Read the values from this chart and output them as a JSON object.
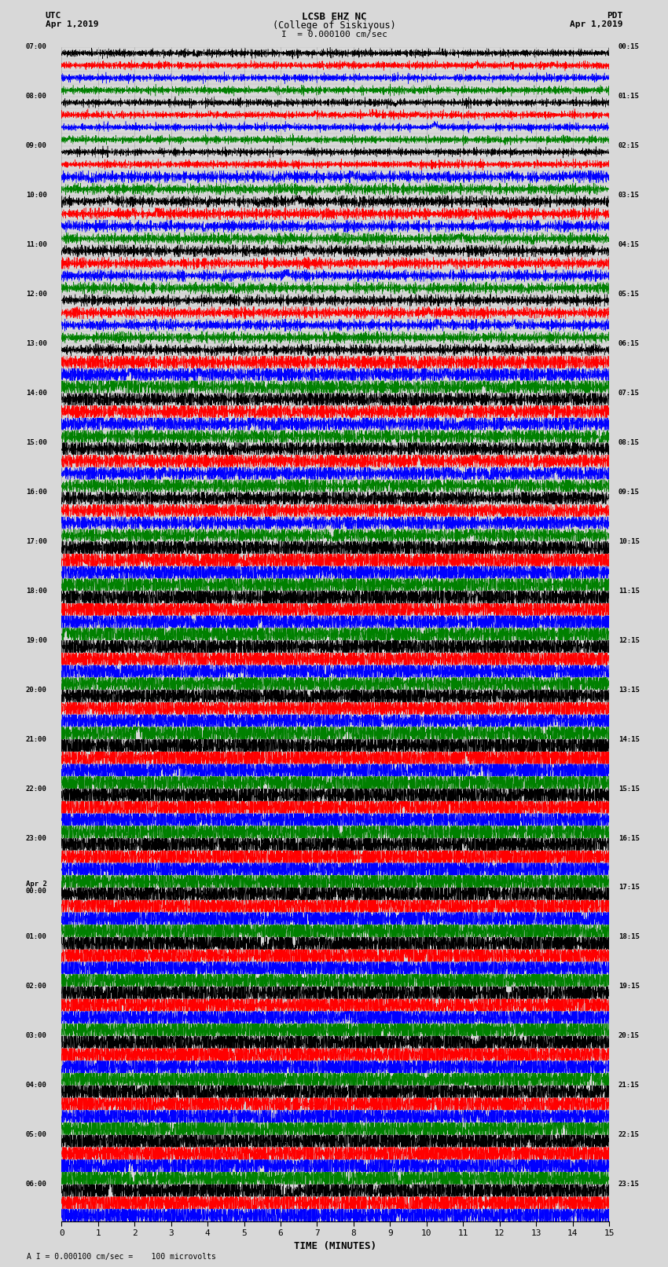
{
  "title_line1": "LCSB EHZ NC",
  "title_line2": "(College of Siskiyous)",
  "scale_label": "I  = 0.000100 cm/sec",
  "utc_label1": "UTC",
  "utc_label2": "Apr 1,2019",
  "pdt_label1": "PDT",
  "pdt_label2": "Apr 1,2019",
  "xlabel": "TIME (MINUTES)",
  "bottom_note": "A I = 0.000100 cm/sec =    100 microvolts",
  "bg_color": "#d8d8d8",
  "trace_colors": [
    "black",
    "red",
    "blue",
    "green"
  ],
  "left_times": [
    "07:00",
    "",
    "",
    "",
    "08:00",
    "",
    "",
    "",
    "09:00",
    "",
    "",
    "",
    "10:00",
    "",
    "",
    "",
    "11:00",
    "",
    "",
    "",
    "12:00",
    "",
    "",
    "",
    "13:00",
    "",
    "",
    "",
    "14:00",
    "",
    "",
    "",
    "15:00",
    "",
    "",
    "",
    "16:00",
    "",
    "",
    "",
    "17:00",
    "",
    "",
    "",
    "18:00",
    "",
    "",
    "",
    "19:00",
    "",
    "",
    "",
    "20:00",
    "",
    "",
    "",
    "21:00",
    "",
    "",
    "",
    "22:00",
    "",
    "",
    "",
    "23:00",
    "",
    "",
    "",
    "Apr 2\n00:00",
    "",
    "",
    "",
    "01:00",
    "",
    "",
    "",
    "02:00",
    "",
    "",
    "",
    "03:00",
    "",
    "",
    "",
    "04:00",
    "",
    "",
    "",
    "05:00",
    "",
    "",
    "",
    "06:00",
    "",
    ""
  ],
  "right_times": [
    "00:15",
    "",
    "",
    "",
    "01:15",
    "",
    "",
    "",
    "02:15",
    "",
    "",
    "",
    "03:15",
    "",
    "",
    "",
    "04:15",
    "",
    "",
    "",
    "05:15",
    "",
    "",
    "",
    "06:15",
    "",
    "",
    "",
    "07:15",
    "",
    "",
    "",
    "08:15",
    "",
    "",
    "",
    "09:15",
    "",
    "",
    "",
    "10:15",
    "",
    "",
    "",
    "11:15",
    "",
    "",
    "",
    "12:15",
    "",
    "",
    "",
    "13:15",
    "",
    "",
    "",
    "14:15",
    "",
    "",
    "",
    "15:15",
    "",
    "",
    "",
    "16:15",
    "",
    "",
    "",
    "17:15",
    "",
    "",
    "",
    "18:15",
    "",
    "",
    "",
    "19:15",
    "",
    "",
    "",
    "20:15",
    "",
    "",
    "",
    "21:15",
    "",
    "",
    "",
    "22:15",
    "",
    "",
    "",
    "23:15",
    "",
    ""
  ],
  "num_rows": 95,
  "xmin": 0,
  "xmax": 15,
  "num_points": 3000
}
